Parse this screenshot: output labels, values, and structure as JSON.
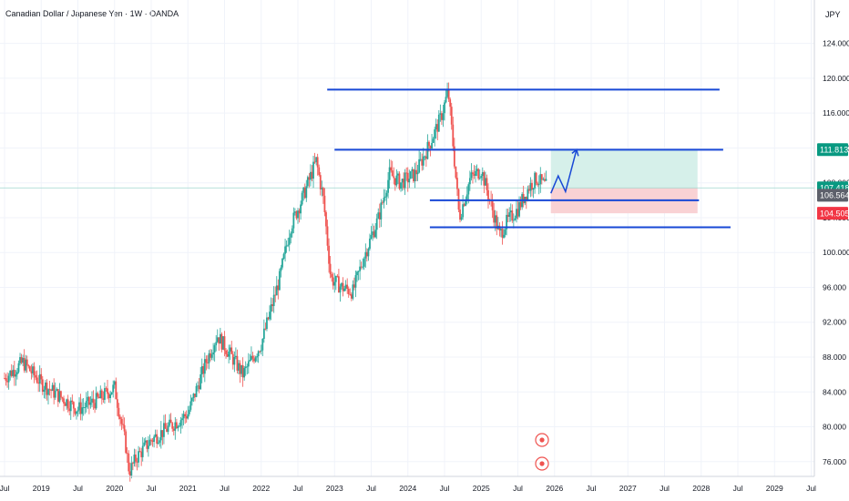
{
  "header": {
    "title": "Canadian Dollar / Japanese Yen · 1W · OANDA",
    "currency": "JPY"
  },
  "colors": {
    "up": "#26a69a",
    "down": "#ef5350",
    "levels": "#1848d6",
    "target_zone": "#d6f0ea",
    "stop_zone": "#f9d2d4",
    "tag_green": "#089981",
    "tag_gray": "#5d606b",
    "tag_red": "#f23645"
  },
  "chart_data": {
    "type": "candlestick",
    "title": "Canadian Dollar / Japanese Yen · 1W · OANDA",
    "xlabel": "",
    "ylabel": "",
    "ylim": [
      74.0,
      128.0
    ],
    "grid": true,
    "y_ticks": [
      "124.000",
      "120.000",
      "116.000",
      "112.000",
      "108.000",
      "104.000",
      "100.000",
      "96.000",
      "92.000",
      "88.000",
      "84.000",
      "80.000",
      "76.000"
    ],
    "x_ticks": [
      "Jul",
      "2019",
      "Jul",
      "2020",
      "Jul",
      "2021",
      "Jul",
      "2022",
      "Jul",
      "2023",
      "Jul",
      "2024",
      "Jul",
      "2025",
      "Jul",
      "2026",
      "Jul",
      "2027",
      "Jul",
      "2028",
      "Jul",
      "2029",
      "Jul"
    ],
    "price_tags": [
      {
        "label": "111.813",
        "value": 111.813,
        "color": "green"
      },
      {
        "label": "107.418",
        "value": 107.418,
        "color": "green"
      },
      {
        "label": "106.564",
        "value": 106.564,
        "color": "gray"
      },
      {
        "label": "104.505",
        "value": 104.505,
        "color": "red"
      }
    ],
    "path_points": [
      [
        2018.5,
        85.6
      ],
      [
        2018.75,
        87.4
      ],
      [
        2019.0,
        85.0
      ],
      [
        2019.5,
        82.0
      ],
      [
        2019.75,
        83.0
      ],
      [
        2020.0,
        84.5
      ],
      [
        2020.15,
        78.0
      ],
      [
        2020.2,
        74.8
      ],
      [
        2020.3,
        76.5
      ],
      [
        2020.5,
        78.5
      ],
      [
        2020.75,
        80.0
      ],
      [
        2021.0,
        81.5
      ],
      [
        2021.25,
        87.5
      ],
      [
        2021.4,
        90.5
      ],
      [
        2021.6,
        88.0
      ],
      [
        2021.75,
        86.0
      ],
      [
        2022.0,
        89.5
      ],
      [
        2022.25,
        97.0
      ],
      [
        2022.4,
        103.0
      ],
      [
        2022.55,
        106.0
      ],
      [
        2022.75,
        110.5
      ],
      [
        2022.85,
        106.0
      ],
      [
        2022.95,
        97.0
      ],
      [
        2023.1,
        96.0
      ],
      [
        2023.25,
        95.5
      ],
      [
        2023.4,
        99.5
      ],
      [
        2023.6,
        104.0
      ],
      [
        2023.75,
        109.0
      ],
      [
        2023.9,
        108.0
      ],
      [
        2024.1,
        109.0
      ],
      [
        2024.3,
        112.5
      ],
      [
        2024.45,
        115.5
      ],
      [
        2024.55,
        118.5
      ],
      [
        2024.62,
        112.0
      ],
      [
        2024.7,
        104.0
      ],
      [
        2024.85,
        108.5
      ],
      [
        2025.0,
        109.5
      ],
      [
        2025.1,
        106.5
      ],
      [
        2025.25,
        102.0
      ],
      [
        2025.35,
        103.5
      ],
      [
        2025.5,
        105.0
      ],
      [
        2025.65,
        107.5
      ],
      [
        2025.75,
        108.5
      ],
      [
        2025.9,
        107.5
      ]
    ],
    "annotations": {
      "resistance_top": 118.7,
      "resistance_mid": 111.8,
      "support_upper": 106.0,
      "support_lower": 102.9,
      "target": 111.813,
      "entry": 107.418,
      "stop": 104.505,
      "projection": [
        [
          2025.95,
          106.8
        ],
        [
          2026.05,
          108.8
        ],
        [
          2026.15,
          107.0
        ],
        [
          2026.3,
          111.8
        ]
      ]
    }
  }
}
